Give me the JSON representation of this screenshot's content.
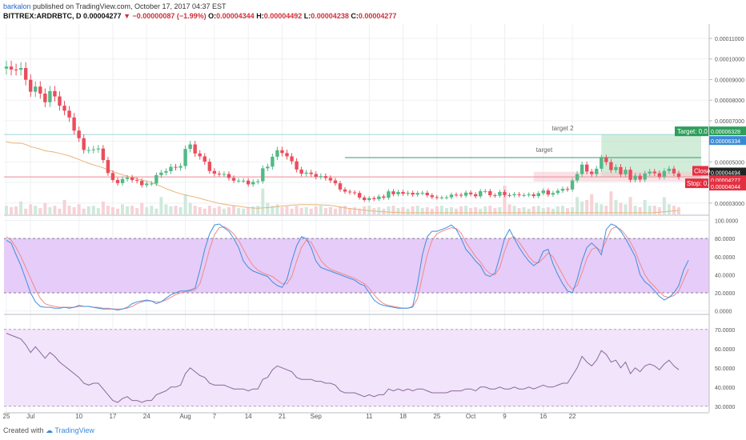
{
  "header": {
    "author": "barkalon",
    "published": "published on TradingView.com, October 17, 2017 04:37 EST",
    "symbol": "BITTREX:ARDRBTC, D",
    "last": "0.00004277",
    "change": "−0.00000087 (−1.99%)",
    "o_label": "O:",
    "o": "0.00004344",
    "h_label": "H:",
    "h": "0.00004492",
    "l_label": "L:",
    "l": "0.00004238",
    "c_label": "C:",
    "c": "0.00004277"
  },
  "footer": {
    "created_with": "Created with",
    "brand": "TradingView"
  },
  "colors": {
    "up": "#53b987",
    "down": "#eb4d5c",
    "grid": "#eef0f3",
    "stoch_band": "#e6ccf8",
    "rsi_band": "#f2e4fb",
    "k_line": "#3d8fe0",
    "d_line": "#f08a8a",
    "rsi_line": "#8a6a9a"
  },
  "chart_data": [
    {
      "type": "candlestick",
      "symbol": "BITTREX:ARDRBTC",
      "interval": "D",
      "x_ticks": [
        "25",
        "Jul",
        "10",
        "17",
        "24",
        "Aug",
        "7",
        "14",
        "21",
        "Sep",
        "11",
        "18",
        "25",
        "Oct",
        "9",
        "16",
        "22"
      ],
      "y_ticks": [
        "0.00011000",
        "0.00010000",
        "0.00009000",
        "0.00008000",
        "0.00007000",
        "0.00006000",
        "0.00005000",
        "0.00004000",
        "0.00003000"
      ],
      "ylim": [
        2.45e-05,
        0.000117
      ],
      "ohlc_close": [
        9.63e-05,
        9.49e-05,
        9.48e-05,
        9.56e-05,
        8.99e-05,
        8.41e-05,
        8.66e-05,
        8.32e-05,
        7.9e-05,
        8.44e-05,
        8.18e-05,
        7.73e-05,
        7.49e-05,
        7.16e-05,
        6.52e-05,
        6.15e-05,
        5.58e-05,
        5.58e-05,
        5.61e-05,
        5.65e-05,
        5.09e-05,
        4.46e-05,
        4.12e-05,
        3.97e-05,
        4.17e-05,
        4.24e-05,
        4.12e-05,
        4.08e-05,
        3.87e-05,
        3.95e-05,
        3.95e-05,
        4.36e-05,
        4.48e-05,
        4.55e-05,
        4.76e-05,
        4.72e-05,
        4.8e-05,
        5.63e-05,
        5.85e-05,
        5.41e-05,
        5.27e-05,
        5.01e-05,
        4.56e-05,
        4.43e-05,
        4.41e-05,
        4.41e-05,
        4.22e-05,
        4.09e-05,
        4.09e-05,
        4.09e-05,
        3.91e-05,
        4.03e-05,
        4.06e-05,
        4.69e-05,
        4.77e-05,
        5.25e-05,
        5.57e-05,
        5.43e-05,
        5.27e-05,
        5.03e-05,
        4.63e-05,
        4.43e-05,
        4.48e-05,
        4.41e-05,
        4.28e-05,
        4.31e-05,
        4.22e-05,
        4.1e-05,
        3.96e-05,
        3.66e-05,
        3.56e-05,
        3.52e-05,
        3.49e-05,
        3.27e-05,
        3.15e-05,
        3.24e-05,
        3.19e-05,
        3.32e-05,
        3.26e-05,
        3.57e-05,
        3.43e-05,
        3.54e-05,
        3.45e-05,
        3.5e-05,
        3.41e-05,
        3.49e-05,
        3.5e-05,
        3.38e-05,
        3.29e-05,
        3.27e-05,
        3.27e-05,
        3.28e-05,
        3.41e-05,
        3.4e-05,
        3.36e-05,
        3.51e-05,
        3.43e-05,
        3.33e-05,
        3.58e-05,
        3.58e-05,
        3.38e-05,
        3.36e-05,
        3.54e-05,
        3.39e-05,
        3.38e-05,
        3.43e-05,
        3.39e-05,
        3.39e-05,
        3.42e-05,
        3.34e-05,
        3.48e-05,
        3.61e-05,
        3.41e-05,
        3.49e-05,
        3.6e-05,
        3.69e-05,
        3.66e-05,
        4.1e-05,
        4.41e-05,
        4.87e-05,
        4.53e-05,
        4.41e-05,
        4.67e-05,
        5.19e-05,
        4.99e-05,
        4.6e-05,
        4.75e-05,
        4.4e-05,
        4.62e-05,
        4.13e-05,
        4.33e-05,
        4.14e-05,
        4.44e-05,
        4.53e-05,
        4.45e-05,
        4.28e-05,
        4.56e-05,
        4.67e-05,
        4.44e-05,
        4.27e-05
      ],
      "start_label": "25",
      "levels": [
        {
          "name": "target 2",
          "value": 6.33e-05
        },
        {
          "name": "target",
          "value": 5.21e-05
        }
      ],
      "position_labels": {
        "target_label": "Target: 0.0",
        "target_price": "0.00006328",
        "price_1": "0.00006334",
        "close_label": "Close",
        "close_price_1": "0.00004494",
        "close_price_2": "0.00004277",
        "stop_label": "Stop: 0.",
        "stop_price": "0.00004044"
      },
      "volume_relative": [
        0.3,
        0.25,
        0.28,
        0.45,
        0.2,
        0.35,
        0.3,
        0.22,
        0.4,
        0.25,
        0.3,
        0.2,
        0.5,
        0.3,
        0.25,
        0.35,
        0.2,
        0.28,
        0.3,
        0.22,
        0.45,
        0.3,
        0.25,
        0.2,
        0.35,
        0.28,
        0.3,
        0.22,
        0.4,
        0.25,
        0.3,
        0.2,
        0.6,
        0.35,
        0.28,
        0.3,
        0.25,
        0.7,
        0.4,
        0.3,
        0.25,
        0.2,
        0.3,
        0.22,
        0.28,
        0.2,
        0.25,
        0.3,
        0.22,
        0.2,
        0.25,
        0.28,
        0.3,
        0.9,
        0.4,
        0.3,
        0.35,
        0.25,
        0.28,
        0.2,
        0.3,
        0.22,
        0.25,
        0.2,
        0.28,
        0.3,
        0.22,
        0.25,
        0.2,
        0.28,
        0.3,
        0.22,
        0.25,
        0.2,
        0.28,
        0.3,
        0.22,
        0.25,
        0.2,
        0.28,
        0.3,
        0.22,
        0.25,
        0.2,
        0.28,
        0.3,
        0.22,
        0.25,
        0.2,
        0.28,
        0.3,
        0.22,
        0.25,
        0.2,
        0.28,
        0.3,
        0.22,
        0.25,
        0.2,
        0.28,
        0.3,
        0.22,
        0.25,
        1.0,
        0.35,
        0.3,
        0.22,
        0.25,
        0.2,
        0.28,
        0.3,
        0.22,
        0.25,
        0.2,
        0.28,
        0.3,
        0.22,
        0.25,
        0.6,
        0.45,
        0.5,
        0.7,
        0.4,
        0.35,
        0.3,
        0.8,
        0.5,
        0.4,
        0.35,
        0.6,
        0.3,
        0.25,
        0.5,
        0.3,
        0.3,
        0.25,
        0.6,
        0.35,
        0.3,
        0.25
      ]
    },
    {
      "type": "line",
      "indicator": "stochastic",
      "y_ticks": [
        "100.0000",
        "80.0000",
        "60.0000",
        "40.0000",
        "20.0000",
        "0.0000"
      ],
      "ylim": [
        -3,
        104
      ],
      "band": [
        20,
        80
      ],
      "series": [
        {
          "values": [
            78,
            75,
            62,
            50,
            35,
            20,
            10,
            5,
            4,
            4,
            3,
            3,
            4,
            3,
            4,
            6,
            5,
            5,
            4,
            3,
            2,
            2,
            2,
            1,
            2,
            4,
            8,
            10,
            11,
            12,
            11,
            8,
            10,
            14,
            18,
            20,
            22,
            22,
            23,
            25,
            45,
            68,
            85,
            95,
            96,
            92,
            88,
            80,
            70,
            55,
            48,
            44,
            42,
            40,
            38,
            32,
            28,
            26,
            35,
            55,
            72,
            82,
            80,
            70,
            55,
            48,
            46,
            44,
            42,
            40,
            38,
            36,
            34,
            30,
            28,
            20,
            12,
            8,
            6,
            5,
            4,
            3,
            3,
            3,
            5,
            30,
            62,
            82,
            88,
            88,
            90,
            92,
            95,
            90,
            80,
            68,
            62,
            55,
            50,
            40,
            38,
            42,
            60,
            80,
            90,
            80,
            70,
            62,
            55,
            50,
            54,
            66,
            68,
            52,
            40,
            30,
            22,
            20,
            35,
            55,
            70,
            75,
            70,
            62,
            90,
            96,
            94,
            88,
            80,
            70,
            60,
            40,
            32,
            28,
            22,
            16,
            12,
            15,
            20,
            28,
            45,
            56
          ]
        },
        {
          "values": [
            82,
            78,
            70,
            60,
            48,
            36,
            24,
            14,
            8,
            6,
            5,
            4,
            4,
            4,
            4,
            5,
            5,
            5,
            4,
            4,
            3,
            3,
            2,
            2,
            2,
            3,
            5,
            8,
            10,
            11,
            11,
            10,
            10,
            12,
            15,
            18,
            20,
            21,
            22,
            23,
            30,
            48,
            68,
            84,
            92,
            93,
            90,
            85,
            78,
            68,
            58,
            50,
            45,
            42,
            40,
            38,
            34,
            30,
            30,
            38,
            55,
            70,
            78,
            76,
            66,
            56,
            50,
            46,
            44,
            42,
            40,
            38,
            36,
            33,
            30,
            25,
            18,
            12,
            8,
            6,
            5,
            4,
            3,
            3,
            4,
            14,
            38,
            62,
            78,
            85,
            88,
            90,
            92,
            91,
            86,
            76,
            68,
            60,
            54,
            46,
            41,
            40,
            48,
            66,
            80,
            82,
            76,
            68,
            60,
            54,
            53,
            58,
            64,
            60,
            50,
            40,
            30,
            24,
            28,
            42,
            58,
            68,
            70,
            66,
            78,
            90,
            93,
            90,
            84,
            76,
            66,
            52,
            40,
            32,
            27,
            21,
            16,
            15,
            17,
            22,
            34,
            46
          ]
        }
      ]
    },
    {
      "type": "line",
      "indicator": "rsi",
      "y_ticks": [
        "70.0000",
        "60.0000",
        "50.0000",
        "40.0000",
        "30.0000"
      ],
      "ylim": [
        27,
        77
      ],
      "band": [
        30,
        70
      ],
      "series": [
        {
          "values": [
            68,
            67,
            66,
            65,
            62,
            58,
            61,
            58,
            55,
            58,
            56,
            53,
            51,
            49,
            47,
            45,
            42,
            41,
            42,
            42,
            39,
            36,
            33,
            32,
            34,
            35,
            33,
            33,
            32,
            33,
            33,
            36,
            37,
            38,
            40,
            40,
            41,
            47,
            50,
            48,
            46,
            45,
            42,
            41,
            41,
            41,
            40,
            39,
            39,
            39,
            38,
            39,
            39,
            44,
            45,
            49,
            51,
            50,
            49,
            48,
            45,
            44,
            44,
            44,
            43,
            43,
            42,
            42,
            41,
            38,
            37,
            37,
            37,
            36,
            35,
            36,
            35,
            36,
            36,
            39,
            38,
            39,
            38,
            39,
            38,
            39,
            39,
            38,
            37,
            37,
            37,
            37,
            38,
            38,
            38,
            39,
            39,
            38,
            40,
            40,
            39,
            39,
            40,
            39,
            39,
            40,
            39,
            39,
            40,
            39,
            40,
            41,
            40,
            40,
            41,
            42,
            42,
            46,
            50,
            56,
            53,
            51,
            54,
            59,
            57,
            53,
            54,
            50,
            53,
            47,
            50,
            48,
            51,
            52,
            51,
            49,
            52,
            54,
            51,
            49
          ]
        }
      ]
    }
  ]
}
